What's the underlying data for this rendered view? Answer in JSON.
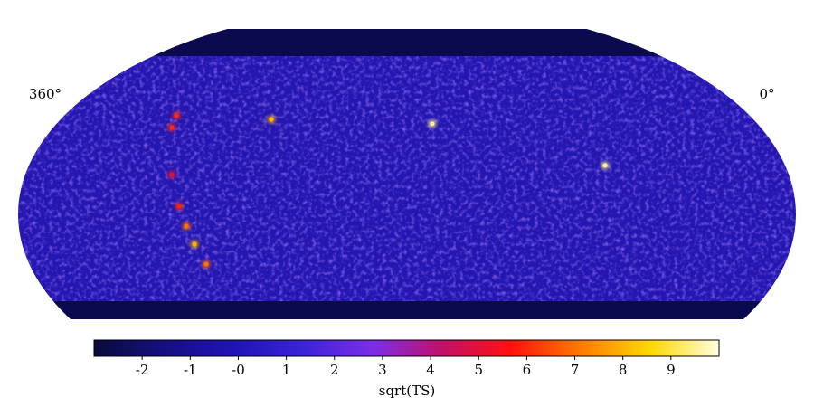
{
  "chart_data": {
    "type": "skymap",
    "projection": "mollweide",
    "xlim": [
      360,
      0
    ],
    "xticks": [
      {
        "value": 360,
        "label": "360°"
      },
      {
        "value": 0,
        "label": "0°"
      }
    ],
    "clim": [
      -3,
      10
    ],
    "cticks": [
      -2,
      -1,
      {
        "value": 0,
        "label": "-0"
      },
      1,
      2,
      3,
      4,
      5,
      6,
      7,
      8,
      9
    ],
    "colorbar_label": "sqrt(TS)",
    "colormap": [
      "#0b0b3b",
      "#150f80",
      "#1e14b4",
      "#3a22d8",
      "#7a2ee8",
      "#c0106a",
      "#ff1010",
      "#ff7a00",
      "#ffd800",
      "#ffffe0"
    ],
    "masked_color": "#0c0a4e",
    "sources": {
      "lon": [
        167,
        250.5,
        85.7,
        301,
        299.7,
        290.9,
        285.6,
        282.3,
        279.4,
        275.7
      ],
      "lat": [
        32.3,
        33.9,
        17.2,
        35.3,
        30.9,
        13.9,
        2.85,
        -4.1,
        -10.45,
        -17.5
      ],
      "values": [
        9.5,
        8,
        9.5,
        6,
        6,
        5,
        6,
        7,
        8,
        7
      ]
    }
  }
}
